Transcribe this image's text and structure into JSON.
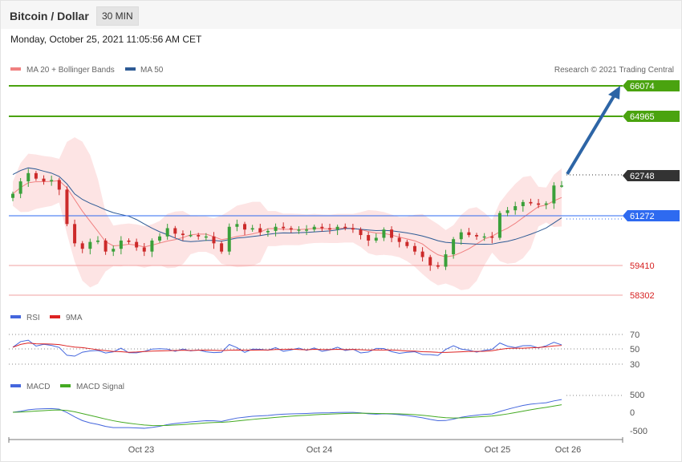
{
  "header": {
    "title": "Bitcoin / Dollar",
    "timeframe": "30 MIN"
  },
  "datetime": "Monday, October 25, 2021 11:05:56 AM CET",
  "legend": {
    "ma20": {
      "label": "MA 20 + Bollinger Bands",
      "color": "#f08080"
    },
    "ma50": {
      "label": "MA 50",
      "color": "#2e5b95"
    },
    "copyright": "Research © 2021 Trading Central"
  },
  "colors": {
    "up": "#3aa03a",
    "down": "#cc2a2a",
    "support_line": "#f2a0a0",
    "resistance_line": "#4aa30f",
    "arrow": "#2d65a6",
    "pivot": "#2e6af0"
  },
  "chart_data": [
    {
      "type": "candlestick",
      "title": "Bitcoin / Dollar",
      "timeframe": "30 MIN",
      "x_ticks": [
        "Oct 23",
        "Oct 24",
        "Oct 25",
        "Oct 26"
      ],
      "ylim": [
        57900,
        67400
      ],
      "levels": [
        {
          "value": 66074,
          "label": "66074",
          "kind": "resistance"
        },
        {
          "value": 64965,
          "label": "64965",
          "kind": "resistance"
        },
        {
          "value": 62748,
          "label": "62748",
          "kind": "last_price"
        },
        {
          "value": 61272,
          "label": "61272",
          "kind": "pivot"
        },
        {
          "value": 59410,
          "label": "59410",
          "kind": "support"
        },
        {
          "value": 58302,
          "label": "58302",
          "kind": "support"
        }
      ],
      "close_series": [
        62400,
        62850,
        63150,
        62950,
        62850,
        62900,
        62550,
        61300,
        60600,
        60400,
        60650,
        60700,
        60300,
        60400,
        60700,
        60650,
        60450,
        60300,
        60700,
        60850,
        61150,
        60950,
        60900,
        60900,
        60850,
        60850,
        60600,
        60300,
        61200,
        61300,
        61100,
        61150,
        61000,
        61050,
        61200,
        61150,
        61100,
        61100,
        61100,
        61200,
        61150,
        61100,
        61200,
        61150,
        61100,
        60900,
        60700,
        60800,
        61100,
        60800,
        60650,
        60500,
        60300,
        60100,
        59800,
        59750,
        60200,
        60750,
        61000,
        60900,
        60850,
        60850,
        60800,
        61700,
        61800,
        61950,
        62100,
        62050,
        62000,
        62050,
        62700,
        62700
      ],
      "forecast": {
        "from": 62748,
        "to": 66074
      }
    },
    {
      "type": "line",
      "title": "RSI",
      "series": [
        {
          "name": "RSI",
          "color": "#4466dd"
        },
        {
          "name": "9MA",
          "color": "#dd2222"
        }
      ],
      "y_ticks": [
        70,
        50,
        30
      ]
    },
    {
      "type": "line",
      "title": "MACD",
      "series": [
        {
          "name": "MACD",
          "color": "#4466dd"
        },
        {
          "name": "MACD Signal",
          "color": "#44aa22"
        }
      ],
      "y_ticks": [
        500,
        0,
        -500
      ]
    }
  ]
}
